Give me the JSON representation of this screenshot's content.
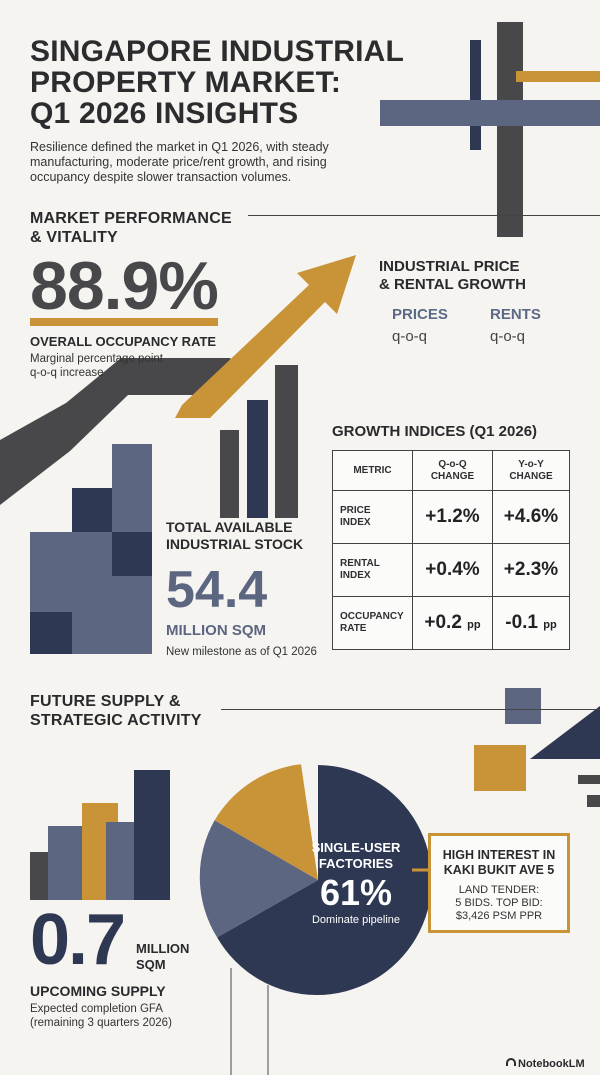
{
  "header": {
    "title_lines": [
      "SINGAPORE INDUSTRIAL",
      "PROPERTY MARKET:",
      "Q1 2026 INSIGHTS"
    ],
    "intro_lines": [
      "Resilience defined the market in Q1 2026, with steady",
      "manufacturing, moderate price/rent growth, and rising",
      "occupancy despite slower transaction volumes."
    ]
  },
  "market": {
    "heading_lines": [
      "MARKET PERFORMANCE",
      "& VITALITY"
    ],
    "occupancy_value": "88.9%",
    "occupancy_label": "OVERALL OCCUPANCY RATE",
    "occupancy_note_lines": [
      "Marginal percentage point",
      "q-o-q increase"
    ]
  },
  "price_rental": {
    "heading_lines": [
      "INDUSTRIAL PRICE",
      "& RENTAL GROWTH"
    ],
    "prices_label": "PRICES",
    "prices_sub": "q-o-q",
    "rents_label": "RENTS",
    "rents_sub": "q-o-q"
  },
  "growth_indices": {
    "heading": "GROWTH INDICES (Q1 2026)",
    "columns": [
      "METRIC",
      "Q-o-Q CHANGE",
      "Y-o-Y CHANGE"
    ],
    "column_lines": [
      [
        "METRIC"
      ],
      [
        "Q-o-Q",
        "CHANGE"
      ],
      [
        "Y-o-Y",
        "CHANGE"
      ]
    ],
    "rows": [
      {
        "metric_lines": [
          "PRICE",
          "INDEX"
        ],
        "qoq": "+1.2%",
        "qoq_unit": "",
        "yoy": "+4.6%",
        "yoy_unit": ""
      },
      {
        "metric_lines": [
          "RENTAL",
          "INDEX"
        ],
        "qoq": "+0.4%",
        "qoq_unit": "",
        "yoy": "+2.3%",
        "yoy_unit": ""
      },
      {
        "metric_lines": [
          "OCCUPANCY",
          "RATE"
        ],
        "qoq": "+0.2",
        "qoq_unit": "pp",
        "yoy": "-0.1",
        "yoy_unit": "pp"
      }
    ]
  },
  "stock": {
    "heading_lines": [
      "TOTAL AVAILABLE",
      "INDUSTRIAL STOCK"
    ],
    "value": "54.4",
    "unit": "MILLION SQM",
    "note": "New milestone as of Q1 2026"
  },
  "future": {
    "heading_lines": [
      "FUTURE SUPPLY &",
      "STRATEGIC ACTIVITY"
    ],
    "supply_value": "0.7",
    "supply_unit_lines": [
      "MILLION",
      "SQM"
    ],
    "supply_label": "UPCOMING SUPPLY",
    "supply_note_lines": [
      "Expected completion GFA",
      "(remaining 3 quarters 2026)"
    ]
  },
  "pipeline": {
    "label_lines": [
      "SINGLE-USER",
      "FACTORIES"
    ],
    "value": "61%",
    "value_fraction": 0.61,
    "note": "Dominate pipeline"
  },
  "tender": {
    "heading_lines": [
      "HIGH INTEREST IN",
      "KAKI BUKIT AVE 5"
    ],
    "detail_lines": [
      "LAND TENDER:",
      "5 BIDS. TOP BID:",
      "$3,426 PSM PPR"
    ]
  },
  "footer": {
    "brand": "NotebookLM"
  },
  "colors": {
    "navy": "#2f3853",
    "slate": "#5c6680",
    "gold": "#c99437",
    "charcoal": "#48474a",
    "background": "#f5f4f1"
  }
}
